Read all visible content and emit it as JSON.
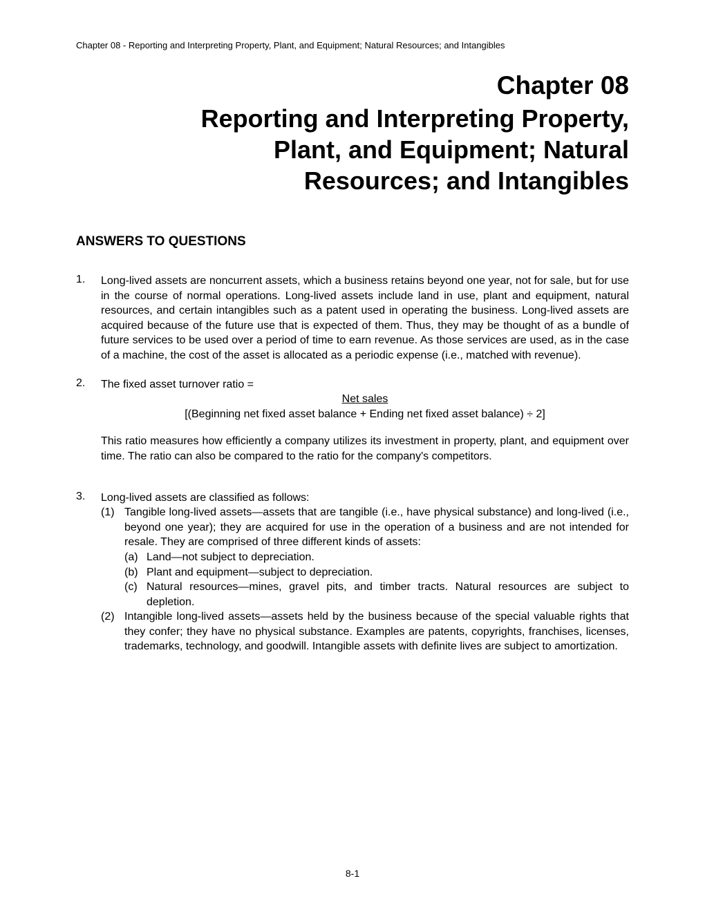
{
  "header": "Chapter 08 - Reporting and Interpreting Property, Plant, and Equipment; Natural Resources; and Intangibles",
  "chapter": {
    "number": "Chapter 08",
    "title_line1": "Reporting and Interpreting Property,",
    "title_line2": "Plant, and Equipment; Natural",
    "title_line3": "Resources; and Intangibles"
  },
  "section_heading": "ANSWERS TO QUESTIONS",
  "questions": {
    "q1": {
      "num": "1.",
      "text": "Long-lived assets are noncurrent assets, which a business retains beyond one year, not for sale, but for use in the course of normal operations. Long-lived assets include land in use, plant and equipment, natural resources, and certain intangibles such as a patent used in operating the business. Long-lived assets are acquired because of the future use that is expected of them. Thus, they may be thought of as a bundle of future services to be used over a period of time to earn revenue. As those services are used, as in the case of a machine, the cost of the asset is allocated as a periodic expense (i.e., matched with revenue)."
    },
    "q2": {
      "num": "2.",
      "label": "The fixed asset turnover ratio =",
      "numerator": "Net sales",
      "denominator": "[(Beginning net fixed asset balance + Ending net fixed asset balance) ÷ 2]",
      "followup": "This ratio measures how efficiently a company utilizes its investment in property, plant, and equipment over time.  The ratio can also be compared to the ratio for the company's competitors."
    },
    "q3": {
      "num": "3.",
      "intro": "Long-lived assets are classified as follows:",
      "sub1": {
        "marker": "(1)",
        "text": "Tangible long-lived assets—assets that are tangible (i.e., have physical substance) and long-lived (i.e., beyond one year); they are acquired for use in the operation of a business and are not intended for resale. They are comprised of three different kinds of assets:",
        "items": {
          "a": {
            "marker": "(a)",
            "text": "Land—not subject to depreciation."
          },
          "b": {
            "marker": "(b)",
            "text": "Plant and equipment—subject to depreciation."
          },
          "c": {
            "marker": "(c)",
            "text": "Natural resources—mines, gravel pits, and timber tracts. Natural resources are subject to depletion."
          }
        }
      },
      "sub2": {
        "marker": "(2)",
        "text": "Intangible long-lived assets—assets held by the business because of the special valuable rights that they confer; they have no physical substance. Examples are patents, copyrights, franchises, licenses, trademarks, technology, and goodwill. Intangible assets with definite lives are subject to amortization."
      }
    }
  },
  "page_number": "8-1"
}
